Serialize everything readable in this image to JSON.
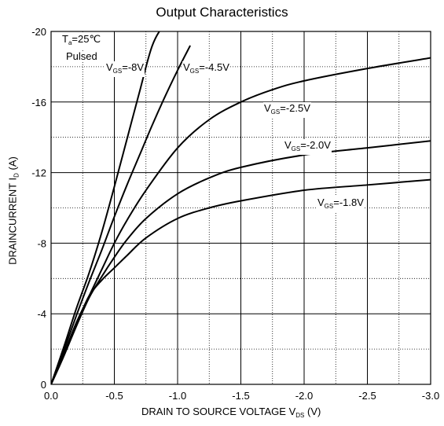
{
  "chart_data": {
    "type": "line",
    "title": "Output Characteristics",
    "xlabel": {
      "main": "DRAIN TO SOURCE VOLTAGE V",
      "sub": "DS",
      "unit": "(V)"
    },
    "ylabel": {
      "main": "DRAINCURRENT I",
      "sub": "D",
      "unit": "(A)"
    },
    "xlim": [
      0,
      -3.0
    ],
    "ylim": [
      0,
      -20
    ],
    "x_ticks": [
      0.0,
      -0.5,
      -1.0,
      -1.5,
      -2.0,
      -2.5,
      -3.0
    ],
    "x_tick_labels": [
      "0.0",
      "-0.5",
      "-1.0",
      "-1.5",
      "-2.0",
      "-2.5",
      "-3.0"
    ],
    "y_ticks": [
      0,
      -4,
      -8,
      -12,
      -16,
      -20
    ],
    "y_tick_labels": [
      "0",
      "-4",
      "-8",
      "-12",
      "-16",
      "-20"
    ],
    "grid": true,
    "conditions": {
      "ta_prefix": "T",
      "ta_sub": "a",
      "ta_value": "=25℃",
      "mode": "Pulsed"
    },
    "series": [
      {
        "name": "-8V",
        "label_prefix": "V",
        "label_sub": "GS",
        "label_value": "=-8V",
        "x": [
          0,
          -0.1,
          -0.2,
          -0.3,
          -0.4,
          -0.5,
          -0.6,
          -0.7,
          -0.8,
          -0.9,
          -1.0
        ],
        "y": [
          0,
          -2.1,
          -4.3,
          -6.3,
          -8.6,
          -11.2,
          -13.9,
          -16.6,
          -19.2,
          -20.4,
          -20.8
        ]
      },
      {
        "name": "-4.5V",
        "label_prefix": "V",
        "label_sub": "GS",
        "label_value": "=-4.5V",
        "x": [
          0,
          -0.1,
          -0.2,
          -0.3,
          -0.4,
          -0.5,
          -0.6,
          -0.7,
          -0.8,
          -0.9,
          -1.0,
          -1.1
        ],
        "y": [
          0,
          -1.9,
          -3.9,
          -5.8,
          -7.6,
          -9.5,
          -11.3,
          -13.0,
          -14.7,
          -16.3,
          -17.8,
          -19.2
        ]
      },
      {
        "name": "-2.5V",
        "label_prefix": "V",
        "label_sub": "GS",
        "label_value": "=-2.5V",
        "x": [
          0,
          -0.1,
          -0.2,
          -0.3,
          -0.4,
          -0.5,
          -0.6,
          -0.75,
          -1.0,
          -1.25,
          -1.5,
          -1.75,
          -2.0,
          -2.5,
          -3.0
        ],
        "y": [
          0,
          -1.7,
          -3.5,
          -5.0,
          -6.5,
          -8.0,
          -9.3,
          -11.0,
          -13.4,
          -15.0,
          -16.0,
          -16.7,
          -17.2,
          -17.9,
          -18.5
        ]
      },
      {
        "name": "-2.0V",
        "label_prefix": "V",
        "label_sub": "GS",
        "label_value": "=-2.0V",
        "x": [
          0,
          -0.1,
          -0.2,
          -0.3,
          -0.4,
          -0.5,
          -0.6,
          -0.75,
          -1.0,
          -1.25,
          -1.5,
          -2.0,
          -2.5,
          -3.0
        ],
        "y": [
          0,
          -1.6,
          -3.3,
          -4.9,
          -6.1,
          -7.2,
          -8.2,
          -9.4,
          -10.8,
          -11.7,
          -12.3,
          -13.0,
          -13.4,
          -13.8
        ]
      },
      {
        "name": "-1.8V",
        "label_prefix": "V",
        "label_sub": "GS",
        "label_value": "=-1.8V",
        "x": [
          0,
          -0.1,
          -0.2,
          -0.3,
          -0.4,
          -0.5,
          -0.6,
          -0.75,
          -1.0,
          -1.25,
          -1.5,
          -2.0,
          -2.5,
          -3.0
        ],
        "y": [
          0,
          -1.6,
          -3.4,
          -5.0,
          -5.9,
          -6.6,
          -7.3,
          -8.3,
          -9.4,
          -10.0,
          -10.4,
          -11.0,
          -11.3,
          -11.6
        ]
      }
    ]
  }
}
